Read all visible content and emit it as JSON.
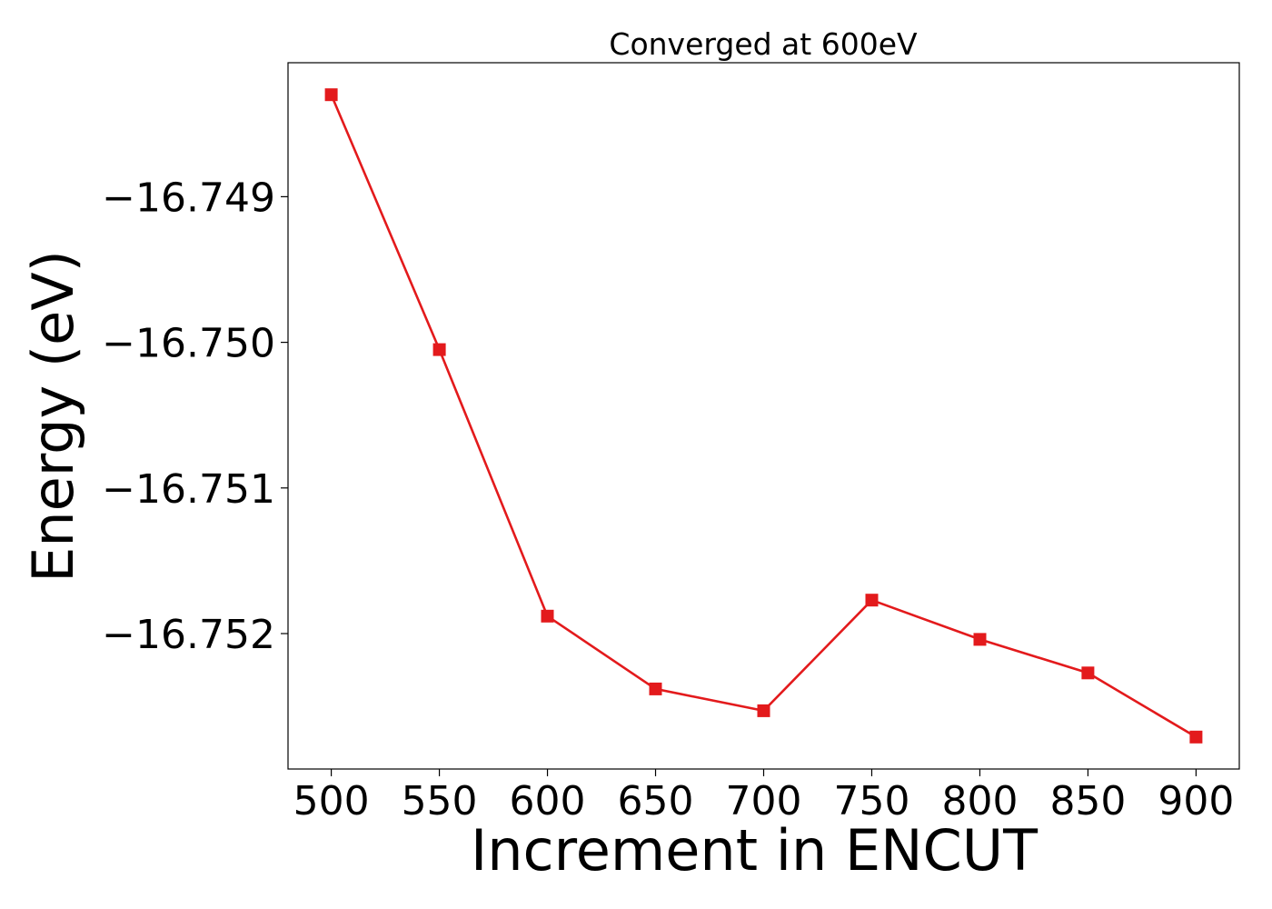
{
  "chart_data": {
    "type": "line",
    "title": "Converged at 600eV",
    "xlabel": "Increment in ENCUT",
    "ylabel": "Energy (eV)",
    "x": [
      500,
      550,
      600,
      650,
      700,
      750,
      800,
      850,
      900
    ],
    "series": [
      {
        "values": [
          -16.7483,
          -16.75005,
          -16.75188,
          -16.75238,
          -16.75253,
          -16.75177,
          -16.75204,
          -16.75227,
          -16.75271
        ],
        "color": "#e31a1c",
        "marker": "square"
      }
    ],
    "xlim": [
      480,
      920
    ],
    "ylim": [
      -16.75293,
      -16.74808
    ],
    "x_ticks": [
      500,
      550,
      600,
      650,
      700,
      750,
      800,
      850,
      900
    ],
    "x_tick_labels": [
      "500",
      "550",
      "600",
      "650",
      "700",
      "750",
      "800",
      "850",
      "900"
    ],
    "y_ticks": [
      -16.749,
      -16.75,
      -16.751,
      -16.752
    ],
    "y_tick_labels": [
      "−16.749",
      "−16.750",
      "−16.751",
      "−16.752"
    ],
    "grid": false,
    "legend": "none"
  }
}
